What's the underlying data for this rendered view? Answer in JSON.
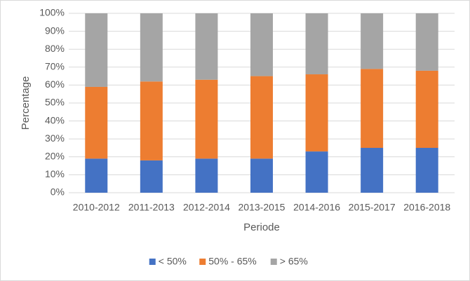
{
  "chart_data": {
    "type": "stacked_bar",
    "x_label": "Periode",
    "y_label": "Percentage",
    "categories": [
      "2010-2012",
      "2011-2013",
      "2012-2014",
      "2013-2015",
      "2014-2016",
      "2015-2017",
      "2016-2018"
    ],
    "series": [
      {
        "name": "< 50%",
        "color": "#4472c4",
        "values": [
          19,
          18,
          19,
          19,
          23,
          25,
          25
        ]
      },
      {
        "name": "50% - 65%",
        "color": "#ed7d31",
        "values": [
          40,
          44,
          44,
          46,
          43,
          44,
          43
        ]
      },
      {
        "name": "> 65%",
        "color": "#a5a5a5",
        "values": [
          41,
          38,
          37,
          35,
          34,
          31,
          32
        ]
      }
    ],
    "ylim": [
      0,
      100
    ],
    "yticks": [
      {
        "value": 0,
        "label": "0%"
      },
      {
        "value": 10,
        "label": "10%"
      },
      {
        "value": 20,
        "label": "20%"
      },
      {
        "value": 30,
        "label": "30%"
      },
      {
        "value": 40,
        "label": "40%"
      },
      {
        "value": 50,
        "label": "50%"
      },
      {
        "value": 60,
        "label": "60%"
      },
      {
        "value": 70,
        "label": "70%"
      },
      {
        "value": 80,
        "label": "80%"
      },
      {
        "value": 90,
        "label": "90%"
      },
      {
        "value": 100,
        "label": "100%"
      }
    ],
    "grid": true,
    "legend": "bottom"
  }
}
